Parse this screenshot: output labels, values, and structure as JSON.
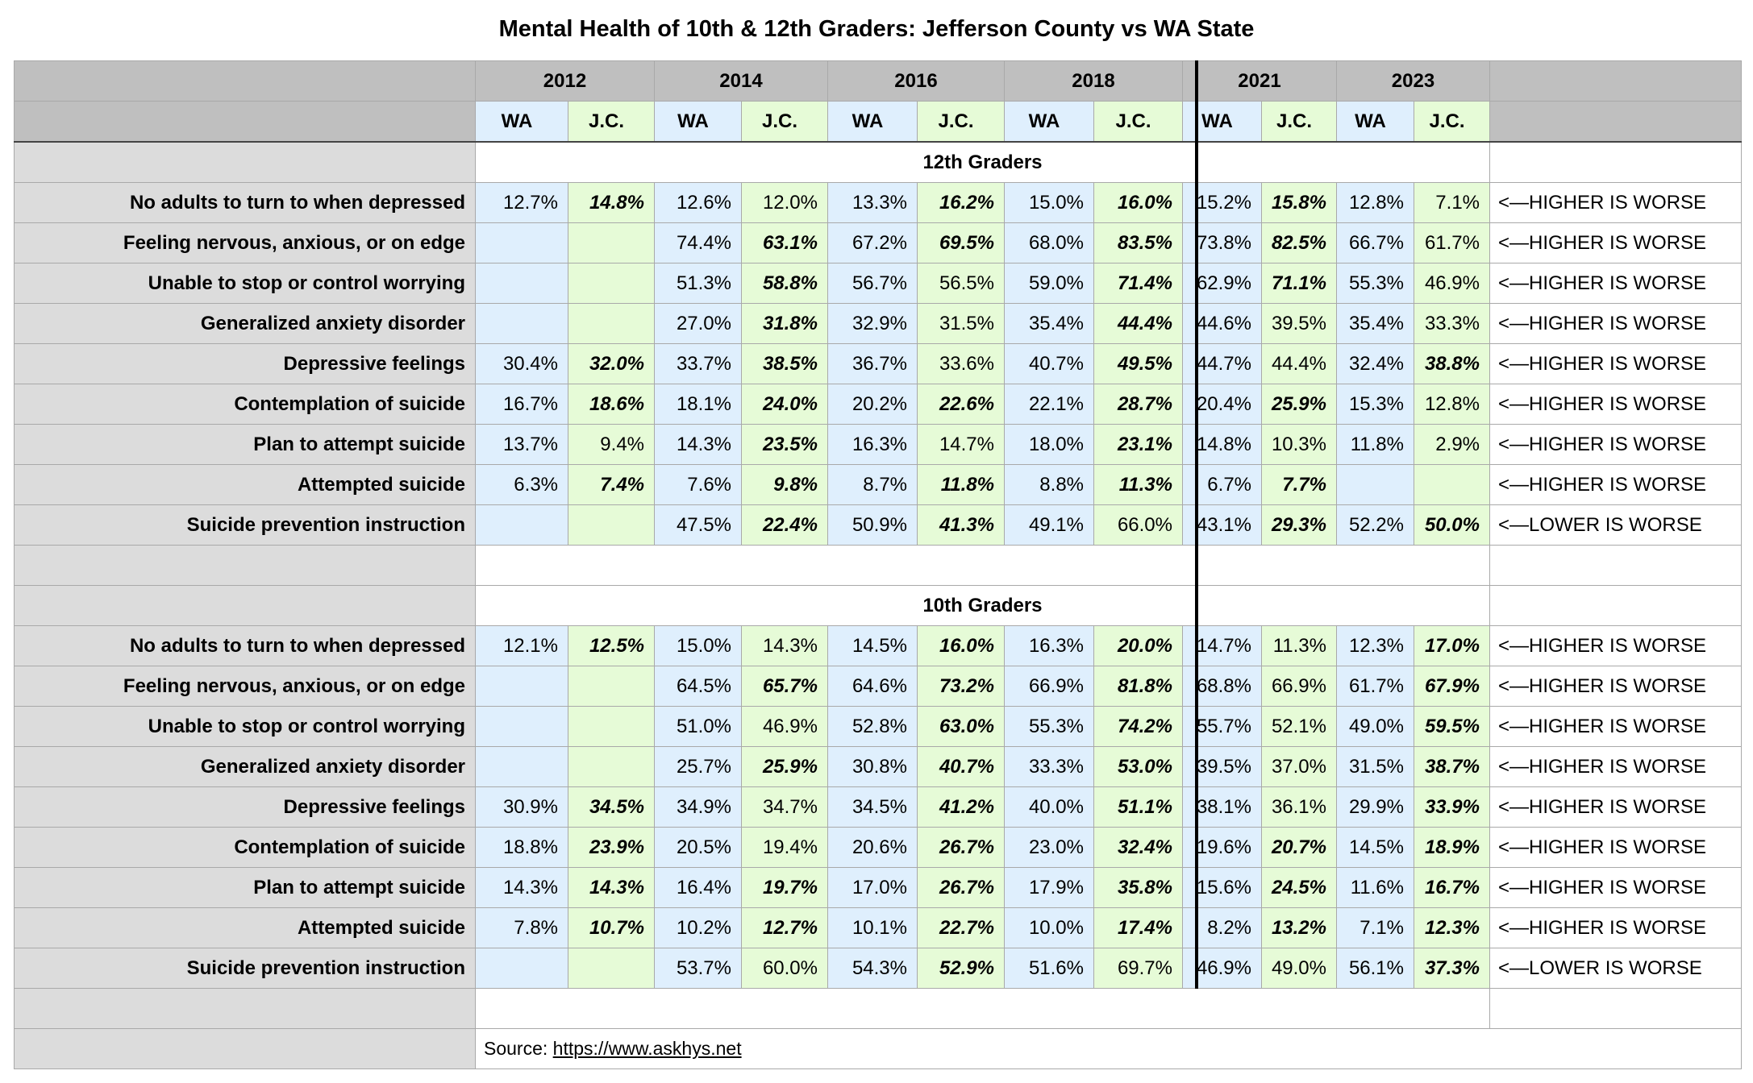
{
  "title": "Mental Health of 10th & 12th Graders: Jefferson County vs WA State",
  "years": [
    "2012",
    "2014",
    "2016",
    "2018",
    "2021",
    "2023"
  ],
  "subheaders": [
    "WA",
    "J.C."
  ],
  "colors": {
    "header": "#bfbfbf",
    "label": "#dcdcdc",
    "wa": "#dfeffd",
    "jc": "#e6fbd7"
  },
  "sections": [
    {
      "title": "12th Graders",
      "rows": [
        {
          "label": "No adults to turn to when depressed",
          "values": [
            "12.7%",
            "14.8%",
            "12.6%",
            "12.0%",
            "13.3%",
            "16.2%",
            "15.0%",
            "16.0%",
            "15.2%",
            "15.8%",
            "12.8%",
            "7.1%"
          ],
          "emphasized": [
            1,
            5,
            7,
            9
          ],
          "note": "<—HIGHER IS WORSE"
        },
        {
          "label": "Feeling nervous, anxious, or on edge",
          "values": [
            "",
            "",
            "74.4%",
            "63.1%",
            "67.2%",
            "69.5%",
            "68.0%",
            "83.5%",
            "73.8%",
            "82.5%",
            "66.7%",
            "61.7%"
          ],
          "emphasized": [
            3,
            5,
            7,
            9
          ],
          "note": "<—HIGHER IS WORSE"
        },
        {
          "label": "Unable to stop or control worrying",
          "values": [
            "",
            "",
            "51.3%",
            "58.8%",
            "56.7%",
            "56.5%",
            "59.0%",
            "71.4%",
            "62.9%",
            "71.1%",
            "55.3%",
            "46.9%"
          ],
          "emphasized": [
            3,
            7,
            9
          ],
          "note": "<—HIGHER IS WORSE"
        },
        {
          "label": "Generalized anxiety disorder",
          "values": [
            "",
            "",
            "27.0%",
            "31.8%",
            "32.9%",
            "31.5%",
            "35.4%",
            "44.4%",
            "44.6%",
            "39.5%",
            "35.4%",
            "33.3%"
          ],
          "emphasized": [
            3,
            7
          ],
          "note": "<—HIGHER IS WORSE"
        },
        {
          "label": "Depressive feelings",
          "values": [
            "30.4%",
            "32.0%",
            "33.7%",
            "38.5%",
            "36.7%",
            "33.6%",
            "40.7%",
            "49.5%",
            "44.7%",
            "44.4%",
            "32.4%",
            "38.8%"
          ],
          "emphasized": [
            1,
            3,
            7,
            11
          ],
          "note": "<—HIGHER IS WORSE"
        },
        {
          "label": "Contemplation of suicide",
          "values": [
            "16.7%",
            "18.6%",
            "18.1%",
            "24.0%",
            "20.2%",
            "22.6%",
            "22.1%",
            "28.7%",
            "20.4%",
            "25.9%",
            "15.3%",
            "12.8%"
          ],
          "emphasized": [
            1,
            3,
            5,
            7,
            9
          ],
          "note": "<—HIGHER IS WORSE"
        },
        {
          "label": "Plan to attempt suicide",
          "values": [
            "13.7%",
            "9.4%",
            "14.3%",
            "23.5%",
            "16.3%",
            "14.7%",
            "18.0%",
            "23.1%",
            "14.8%",
            "10.3%",
            "11.8%",
            "2.9%"
          ],
          "emphasized": [
            3,
            7
          ],
          "note": "<—HIGHER IS WORSE"
        },
        {
          "label": "Attempted suicide",
          "values": [
            "6.3%",
            "7.4%",
            "7.6%",
            "9.8%",
            "8.7%",
            "11.8%",
            "8.8%",
            "11.3%",
            "6.7%",
            "7.7%",
            "",
            ""
          ],
          "emphasized": [
            1,
            3,
            5,
            7,
            9
          ],
          "note": "<—HIGHER IS WORSE"
        },
        {
          "label": "Suicide prevention instruction",
          "values": [
            "",
            "",
            "47.5%",
            "22.4%",
            "50.9%",
            "41.3%",
            "49.1%",
            "66.0%",
            "43.1%",
            "29.3%",
            "52.2%",
            "50.0%"
          ],
          "emphasized": [
            3,
            5,
            9,
            11
          ],
          "note": "<—LOWER IS WORSE"
        }
      ]
    },
    {
      "title": "10th Graders",
      "rows": [
        {
          "label": "No adults to turn to when depressed",
          "values": [
            "12.1%",
            "12.5%",
            "15.0%",
            "14.3%",
            "14.5%",
            "16.0%",
            "16.3%",
            "20.0%",
            "14.7%",
            "11.3%",
            "12.3%",
            "17.0%"
          ],
          "emphasized": [
            1,
            5,
            7,
            11
          ],
          "note": "<—HIGHER IS WORSE"
        },
        {
          "label": "Feeling nervous, anxious, or on edge",
          "values": [
            "",
            "",
            "64.5%",
            "65.7%",
            "64.6%",
            "73.2%",
            "66.9%",
            "81.8%",
            "68.8%",
            "66.9%",
            "61.7%",
            "67.9%"
          ],
          "emphasized": [
            3,
            5,
            7,
            11
          ],
          "note": "<—HIGHER IS WORSE"
        },
        {
          "label": "Unable to stop or control worrying",
          "values": [
            "",
            "",
            "51.0%",
            "46.9%",
            "52.8%",
            "63.0%",
            "55.3%",
            "74.2%",
            "55.7%",
            "52.1%",
            "49.0%",
            "59.5%"
          ],
          "emphasized": [
            5,
            7,
            11
          ],
          "note": "<—HIGHER IS WORSE"
        },
        {
          "label": "Generalized anxiety disorder",
          "values": [
            "",
            "",
            "25.7%",
            "25.9%",
            "30.8%",
            "40.7%",
            "33.3%",
            "53.0%",
            "39.5%",
            "37.0%",
            "31.5%",
            "38.7%"
          ],
          "emphasized": [
            3,
            5,
            7,
            11
          ],
          "note": "<—HIGHER IS WORSE"
        },
        {
          "label": "Depressive feelings",
          "values": [
            "30.9%",
            "34.5%",
            "34.9%",
            "34.7%",
            "34.5%",
            "41.2%",
            "40.0%",
            "51.1%",
            "38.1%",
            "36.1%",
            "29.9%",
            "33.9%"
          ],
          "emphasized": [
            1,
            5,
            7,
            11
          ],
          "note": "<—HIGHER IS WORSE"
        },
        {
          "label": "Contemplation of suicide",
          "values": [
            "18.8%",
            "23.9%",
            "20.5%",
            "19.4%",
            "20.6%",
            "26.7%",
            "23.0%",
            "32.4%",
            "19.6%",
            "20.7%",
            "14.5%",
            "18.9%"
          ],
          "emphasized": [
            1,
            5,
            7,
            9,
            11
          ],
          "note": "<—HIGHER IS WORSE"
        },
        {
          "label": "Plan to attempt suicide",
          "values": [
            "14.3%",
            "14.3%",
            "16.4%",
            "19.7%",
            "17.0%",
            "26.7%",
            "17.9%",
            "35.8%",
            "15.6%",
            "24.5%",
            "11.6%",
            "16.7%"
          ],
          "emphasized": [
            1,
            3,
            5,
            7,
            9,
            11
          ],
          "note": "<—HIGHER IS WORSE"
        },
        {
          "label": "Attempted suicide",
          "values": [
            "7.8%",
            "10.7%",
            "10.2%",
            "12.7%",
            "10.1%",
            "22.7%",
            "10.0%",
            "17.4%",
            "8.2%",
            "13.2%",
            "7.1%",
            "12.3%"
          ],
          "emphasized": [
            1,
            3,
            5,
            7,
            9,
            11
          ],
          "note": "<—HIGHER IS WORSE"
        },
        {
          "label": "Suicide prevention instruction",
          "values": [
            "",
            "",
            "53.7%",
            "60.0%",
            "54.3%",
            "52.9%",
            "51.6%",
            "69.7%",
            "46.9%",
            "49.0%",
            "56.1%",
            "37.3%"
          ],
          "emphasized": [
            5,
            11
          ],
          "note": "<—LOWER IS WORSE"
        }
      ]
    }
  ],
  "source": {
    "label": "Source: ",
    "link": "https://www.askhys.net"
  }
}
